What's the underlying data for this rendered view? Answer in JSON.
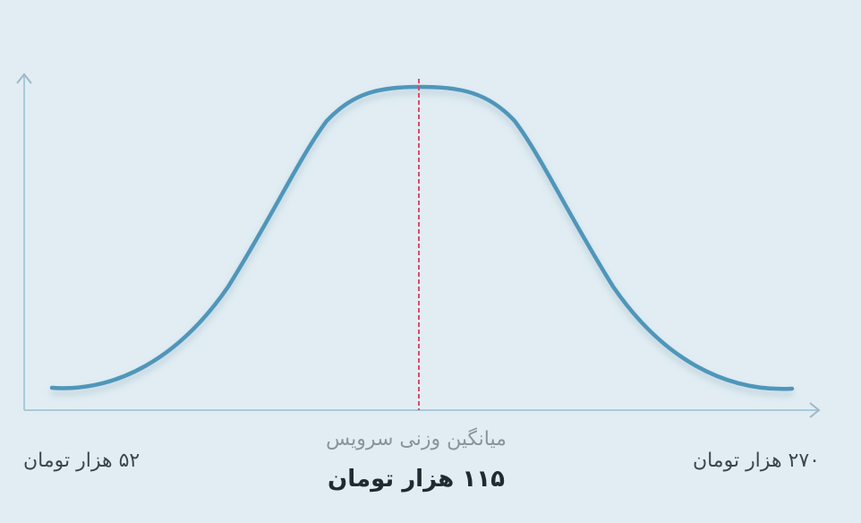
{
  "labels": {
    "min": "۵۲ هزار تومان",
    "max": "۲۷۰ هزار تومان",
    "mean_caption": "میانگین وزنی سرویس",
    "mean_value": "۱۱۵ هزار تومان"
  },
  "colors": {
    "curve": "#5096ba",
    "mean_line": "#e0476a",
    "axis": "#a9c9da",
    "background": "#e1edf3"
  },
  "chart_data": {
    "type": "line",
    "title": "",
    "xlabel": "",
    "ylabel": "",
    "curve_shape": "bell",
    "x_min_label": "۵۲ هزار تومان",
    "x_max_label": "۲۷۰ هزار تومان",
    "mean_label": "۱۱۵ هزار تومان",
    "mean_caption": "میانگین وزنی سرویس",
    "grid": false,
    "legend": "none"
  }
}
